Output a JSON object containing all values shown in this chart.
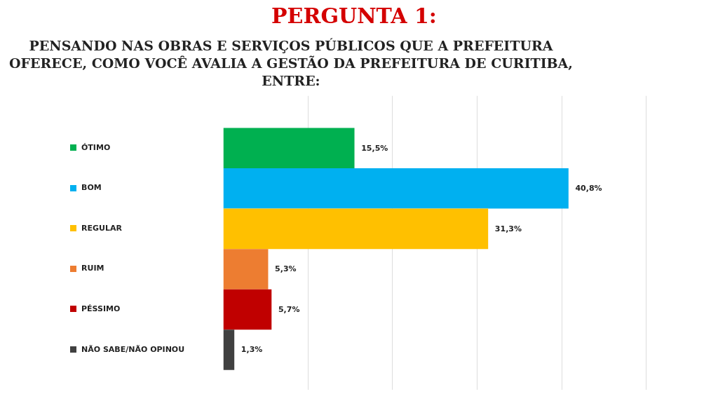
{
  "chart_data": {
    "type": "bar",
    "orientation": "horizontal",
    "title": "PERGUNTA 1:",
    "subtitle": "PENSANDO NAS OBRAS E SERVIÇOS PÚBLICOS QUE A PREFEITURA OFERECE, COMO VOCÊ AVALIA A GESTÃO DA PREFEITURA DE CURITIBA, ENTRE:",
    "categories": [
      "ÓTIMO",
      "BOM",
      "REGULAR",
      "RUIM",
      "PÉSSIMO",
      "NÃO SABE/NÃO OPINOU"
    ],
    "values": [
      15.5,
      40.8,
      31.3,
      5.3,
      5.7,
      1.3
    ],
    "colors": [
      "#00b050",
      "#00b0f0",
      "#ffc000",
      "#ed7d31",
      "#c00000",
      "#404040"
    ],
    "value_labels": [
      "15,5%",
      "40,8%",
      "31,3%",
      "5,3%",
      "5,7%",
      "1,3%"
    ],
    "grid": "x",
    "tick_labels": false
  }
}
